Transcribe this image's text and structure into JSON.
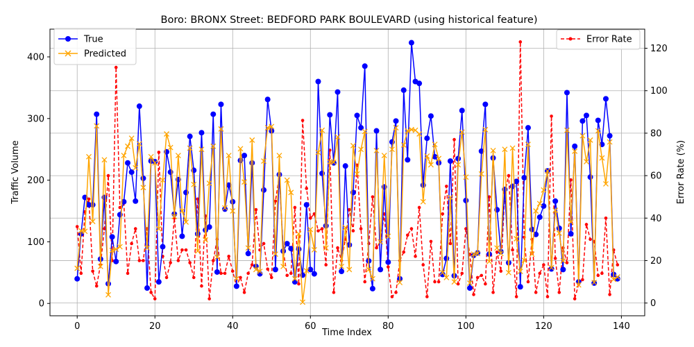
{
  "chart_data": {
    "type": "line",
    "title": "Boro: BRONX Street: BEDFORD PARK BOULEVARD (using historical feature)",
    "xlabel": "Time Index",
    "ylabel": "Traffic Volume",
    "y2label": "Error Rate (%)",
    "xlim": [
      -7,
      146
    ],
    "ylim": [
      -20,
      445
    ],
    "y2lim": [
      -6,
      129
    ],
    "x_ticks": [
      0,
      20,
      40,
      60,
      80,
      100,
      120,
      140
    ],
    "y_ticks": [
      0,
      100,
      200,
      300,
      400
    ],
    "y2_ticks": [
      0,
      20,
      40,
      60,
      80,
      100,
      120
    ],
    "grid": true,
    "legend_left": "upper-left",
    "legend_right": "upper-right",
    "series": [
      {
        "name": "True",
        "axis": "left",
        "color": "#0000ff",
        "style": "solid",
        "marker": "circle",
        "values": [
          40,
          113,
          172,
          160,
          160,
          307,
          72,
          172,
          32,
          108,
          68,
          144,
          165,
          228,
          213,
          166,
          320,
          203,
          25,
          231,
          230,
          35,
          92,
          246,
          213,
          145,
          201,
          109,
          180,
          271,
          216,
          113,
          277,
          119,
          124,
          307,
          51,
          323,
          153,
          192,
          165,
          28,
          232,
          240,
          81,
          228,
          60,
          48,
          184,
          331,
          280,
          55,
          209,
          85,
          97,
          89,
          35,
          88,
          46,
          160,
          55,
          48,
          360,
          211,
          126,
          306,
          228,
          343,
          52,
          223,
          95,
          180,
          305,
          285,
          385,
          69,
          24,
          280,
          55,
          189,
          67,
          262,
          296,
          40,
          346,
          233,
          423,
          360,
          357,
          192,
          268,
          304,
          238,
          228,
          47,
          73,
          231,
          45,
          235,
          313,
          167,
          25,
          78,
          82,
          247,
          323,
          80,
          236,
          152,
          84,
          185,
          66,
          190,
          198,
          27,
          204,
          285,
          120,
          112,
          140,
          158,
          215,
          56,
          166,
          122,
          55,
          342,
          113,
          255,
          35,
          296,
          305,
          205,
          33,
          297,
          258,
          332,
          272,
          47,
          40
        ]
      },
      {
        "name": "Predicted",
        "axis": "left",
        "color": "#ffa500",
        "style": "solid",
        "marker": "x",
        "values": [
          57,
          118,
          117,
          238,
          133,
          288,
          60,
          233,
          14,
          86,
          88,
          92,
          240,
          255,
          268,
          220,
          259,
          188,
          90,
          238,
          228,
          121,
          200,
          275,
          253,
          141,
          240,
          150,
          132,
          252,
          193,
          85,
          250,
          103,
          195,
          255,
          75,
          283,
          155,
          240,
          150,
          40,
          251,
          197,
          90,
          265,
          55,
          52,
          231,
          285,
          287,
          80,
          240,
          60,
          200,
          180,
          40,
          113,
          2,
          53,
          120,
          87,
          245,
          281,
          90,
          230,
          229,
          270,
          60,
          123,
          55,
          256,
          210,
          250,
          279,
          55,
          40,
          248,
          100,
          240,
          109,
          250,
          285,
          34,
          257,
          280,
          282,
          281,
          275,
          165,
          239,
          225,
          258,
          235,
          50,
          42,
          172,
          35,
          225,
          278,
          205,
          33,
          80,
          81,
          210,
          282,
          68,
          248,
          90,
          81,
          250,
          50,
          252,
          105,
          52,
          70,
          258,
          80,
          150,
          162,
          184,
          215,
          58,
          151,
          114,
          69,
          281,
          132,
          247,
          30,
          272,
          230,
          265,
          34,
          280,
          236,
          194,
          262,
          39,
          43
        ]
      },
      {
        "name": "Error Rate",
        "axis": "right",
        "color": "#ff0000",
        "style": "dashed",
        "marker": "dot",
        "values": [
          36,
          14,
          43,
          49,
          15,
          8,
          18,
          35,
          60,
          20,
          111,
          45,
          47,
          14,
          28,
          35,
          20,
          20,
          35,
          5,
          2,
          71,
          22,
          12,
          19,
          40,
          20,
          25,
          25,
          19,
          12,
          49,
          8,
          41,
          2,
          20,
          30,
          14,
          14,
          22,
          15,
          8,
          12,
          5,
          14,
          18,
          44,
          25,
          28,
          16,
          12,
          48,
          60,
          25,
          13,
          14,
          45,
          9,
          86,
          54,
          40,
          42,
          34,
          35,
          18,
          72,
          5,
          26,
          20,
          30,
          44,
          34,
          65,
          35,
          10,
          28,
          50,
          26,
          29,
          42,
          17,
          3,
          5,
          20,
          24,
          32,
          35,
          22,
          45,
          18,
          3,
          29,
          10,
          10,
          42,
          55,
          28,
          77,
          9,
          14,
          35,
          23,
          4,
          12,
          13,
          9,
          50,
          5,
          24,
          15,
          52,
          60,
          25,
          3,
          123,
          31,
          10,
          30,
          5,
          14,
          18,
          3,
          88,
          21,
          5,
          26,
          19,
          58,
          2,
          9,
          11,
          37,
          30,
          29,
          13,
          14,
          40,
          4,
          25,
          18
        ]
      }
    ]
  }
}
